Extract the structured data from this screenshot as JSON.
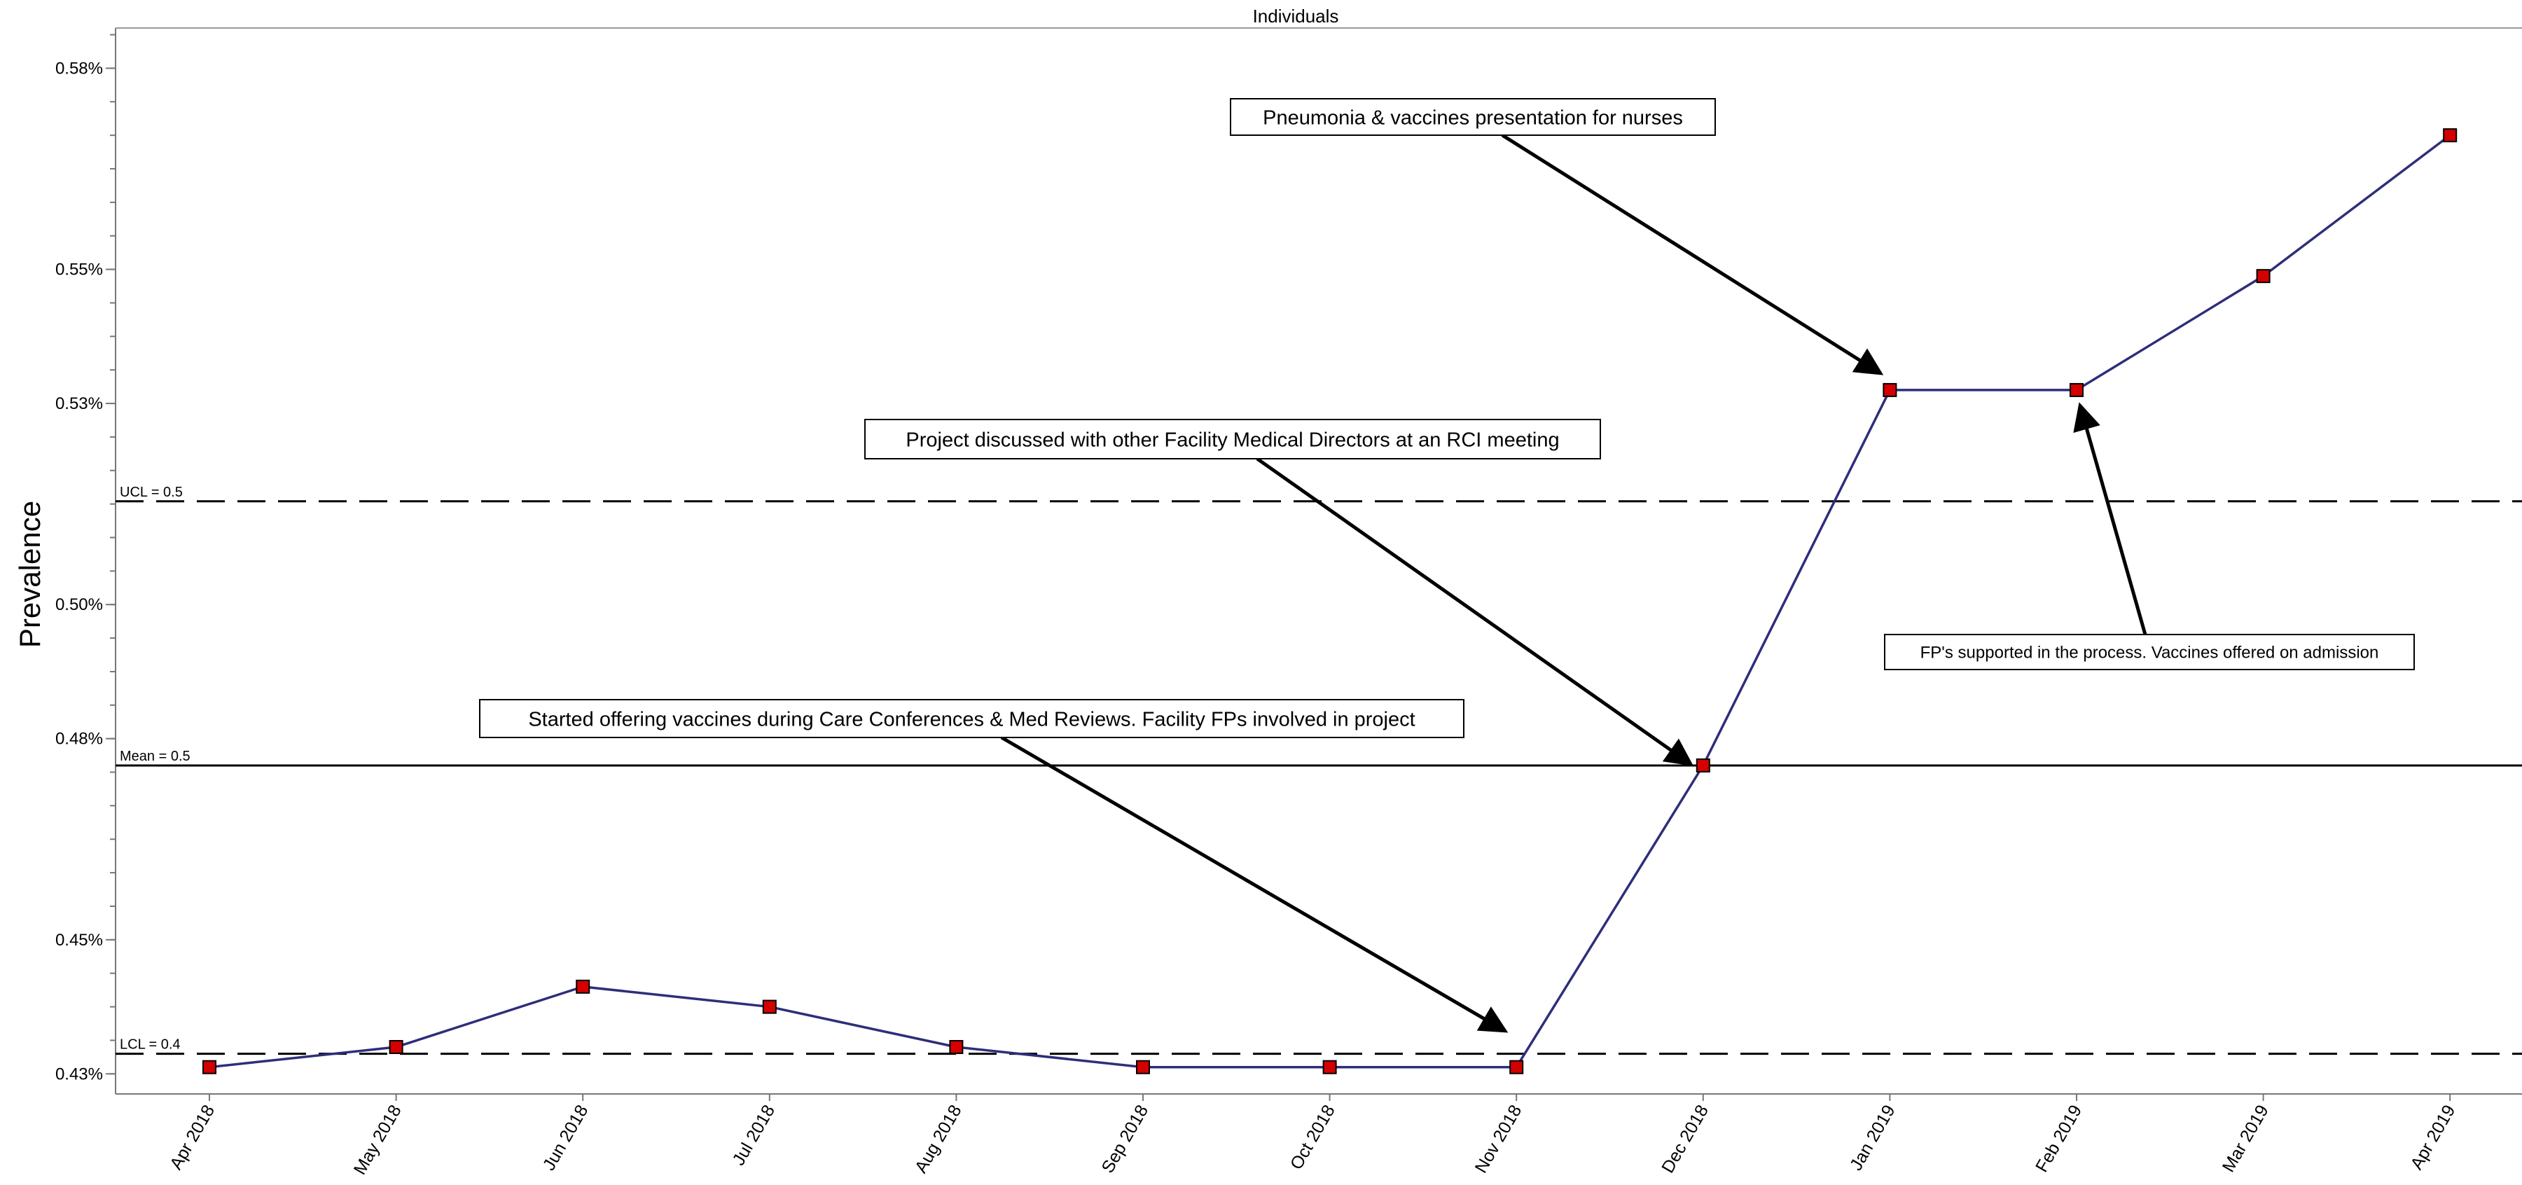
{
  "chart_data": {
    "type": "line",
    "title": "Individuals",
    "ylabel": "Prevalence",
    "xlabel": "",
    "categories": [
      "Apr 2018",
      "May 2018",
      "Jun 2018",
      "Jul 2018",
      "Aug 2018",
      "Sep 2018",
      "Oct 2018",
      "Nov 2018",
      "Dec 2018",
      "Jan 2019",
      "Feb 2019",
      "Mar 2019",
      "Apr 2019"
    ],
    "series": [
      {
        "values": [
          0.431,
          0.434,
          0.443,
          0.44,
          0.434,
          0.431,
          0.431,
          0.431,
          0.476,
          0.532,
          0.532,
          0.549,
          0.57
        ]
      }
    ],
    "ylim": [
      0.427,
      0.586
    ],
    "yticks": [
      0.43,
      0.45,
      0.48,
      0.5,
      0.53,
      0.55,
      0.58
    ],
    "ytick_labels": [
      "0.43%",
      "0.45%",
      "0.48%",
      "0.50%",
      "0.53%",
      "0.55%",
      "0.58%"
    ],
    "reference_lines": [
      {
        "label": "UCL = 0.5",
        "value": 0.5154,
        "style": "dashed"
      },
      {
        "label": "Mean = 0.5",
        "value": 0.476,
        "style": "solid"
      },
      {
        "label": "LCL = 0.4",
        "value": 0.433,
        "style": "dashed"
      }
    ],
    "annotations": [
      {
        "text": "Pneumonia & vaccines presentation for nurses",
        "target_index": 9
      },
      {
        "text": "Project discussed with other Facility Medical Directors at an RCI meeting",
        "target_index": 8
      },
      {
        "text": "Started offering vaccines during Care Conferences & Med Reviews. Facility FPs involved in project",
        "target_index": 7
      },
      {
        "text": "FP's supported in the process. Vaccines offered on admission",
        "target_index": 10
      }
    ],
    "colors": {
      "line": "#2e2e7a",
      "marker_fill": "#d40000",
      "marker_stroke": "#000000",
      "reference": "#000000"
    },
    "grid": false,
    "legend": "none"
  }
}
